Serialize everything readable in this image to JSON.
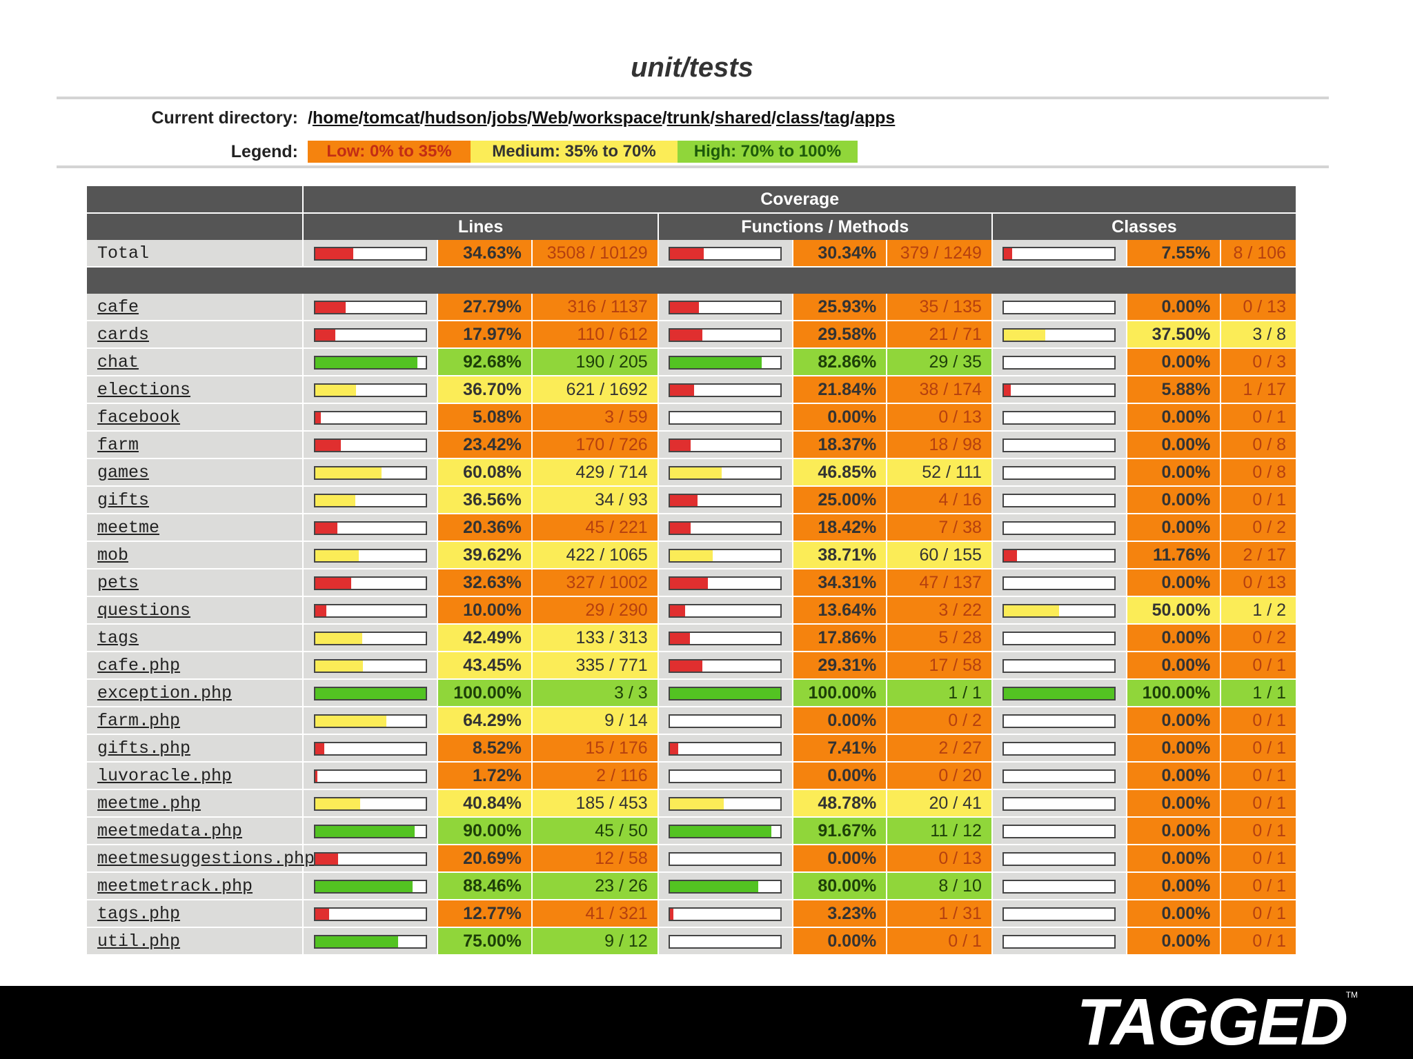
{
  "title": "unit/tests",
  "current_directory": {
    "label": "Current directory:",
    "path": "/home/tomcat/hudson/jobs/Web/workspace/trunk/shared/class/tag/apps"
  },
  "legend": {
    "label": "Legend:",
    "low": "Low: 0% to 35%",
    "medium": "Medium: 35% to 70%",
    "high": "High: 70% to 100%"
  },
  "colors": {
    "low": "#f5830e",
    "medium": "#fbec57",
    "high": "#90d63a",
    "bar_low": "#e02f2f",
    "bar_medium": "#fbec57",
    "bar_high": "#53c322"
  },
  "table": {
    "coverage_header": "Coverage",
    "columns": [
      "Lines",
      "Functions / Methods",
      "Classes"
    ],
    "total": {
      "name": "Total",
      "lines": {
        "pct": "34.63%",
        "ratio": "3508 / 10129",
        "value": 34.63
      },
      "functions": {
        "pct": "30.34%",
        "ratio": "379 / 1249",
        "value": 30.34
      },
      "classes": {
        "pct": "7.55%",
        "ratio": "8 / 106",
        "value": 7.55
      }
    },
    "rows": [
      {
        "name": "cafe",
        "lines": {
          "pct": "27.79%",
          "ratio": "316 / 1137",
          "value": 27.79
        },
        "functions": {
          "pct": "25.93%",
          "ratio": "35 / 135",
          "value": 25.93
        },
        "classes": {
          "pct": "0.00%",
          "ratio": "0 / 13",
          "value": 0
        }
      },
      {
        "name": "cards",
        "lines": {
          "pct": "17.97%",
          "ratio": "110 / 612",
          "value": 17.97
        },
        "functions": {
          "pct": "29.58%",
          "ratio": "21 / 71",
          "value": 29.58
        },
        "classes": {
          "pct": "37.50%",
          "ratio": "3 / 8",
          "value": 37.5
        }
      },
      {
        "name": "chat",
        "lines": {
          "pct": "92.68%",
          "ratio": "190 / 205",
          "value": 92.68
        },
        "functions": {
          "pct": "82.86%",
          "ratio": "29 / 35",
          "value": 82.86
        },
        "classes": {
          "pct": "0.00%",
          "ratio": "0 / 3",
          "value": 0
        }
      },
      {
        "name": "elections",
        "lines": {
          "pct": "36.70%",
          "ratio": "621 / 1692",
          "value": 36.7
        },
        "functions": {
          "pct": "21.84%",
          "ratio": "38 / 174",
          "value": 21.84
        },
        "classes": {
          "pct": "5.88%",
          "ratio": "1 / 17",
          "value": 5.88
        }
      },
      {
        "name": "facebook",
        "lines": {
          "pct": "5.08%",
          "ratio": "3 / 59",
          "value": 5.08
        },
        "functions": {
          "pct": "0.00%",
          "ratio": "0 / 13",
          "value": 0
        },
        "classes": {
          "pct": "0.00%",
          "ratio": "0 / 1",
          "value": 0
        }
      },
      {
        "name": "farm",
        "lines": {
          "pct": "23.42%",
          "ratio": "170 / 726",
          "value": 23.42
        },
        "functions": {
          "pct": "18.37%",
          "ratio": "18 / 98",
          "value": 18.37
        },
        "classes": {
          "pct": "0.00%",
          "ratio": "0 / 8",
          "value": 0
        }
      },
      {
        "name": "games",
        "lines": {
          "pct": "60.08%",
          "ratio": "429 / 714",
          "value": 60.08
        },
        "functions": {
          "pct": "46.85%",
          "ratio": "52 / 111",
          "value": 46.85
        },
        "classes": {
          "pct": "0.00%",
          "ratio": "0 / 8",
          "value": 0
        }
      },
      {
        "name": "gifts",
        "lines": {
          "pct": "36.56%",
          "ratio": "34 / 93",
          "value": 36.56
        },
        "functions": {
          "pct": "25.00%",
          "ratio": "4 / 16",
          "value": 25
        },
        "classes": {
          "pct": "0.00%",
          "ratio": "0 / 1",
          "value": 0
        }
      },
      {
        "name": "meetme",
        "lines": {
          "pct": "20.36%",
          "ratio": "45 / 221",
          "value": 20.36
        },
        "functions": {
          "pct": "18.42%",
          "ratio": "7 / 38",
          "value": 18.42
        },
        "classes": {
          "pct": "0.00%",
          "ratio": "0 / 2",
          "value": 0
        }
      },
      {
        "name": "mob",
        "lines": {
          "pct": "39.62%",
          "ratio": "422 / 1065",
          "value": 39.62
        },
        "functions": {
          "pct": "38.71%",
          "ratio": "60 / 155",
          "value": 38.71
        },
        "classes": {
          "pct": "11.76%",
          "ratio": "2 / 17",
          "value": 11.76
        }
      },
      {
        "name": "pets",
        "lines": {
          "pct": "32.63%",
          "ratio": "327 / 1002",
          "value": 32.63
        },
        "functions": {
          "pct": "34.31%",
          "ratio": "47 / 137",
          "value": 34.31
        },
        "classes": {
          "pct": "0.00%",
          "ratio": "0 / 13",
          "value": 0
        }
      },
      {
        "name": "questions",
        "lines": {
          "pct": "10.00%",
          "ratio": "29 / 290",
          "value": 10
        },
        "functions": {
          "pct": "13.64%",
          "ratio": "3 / 22",
          "value": 13.64
        },
        "classes": {
          "pct": "50.00%",
          "ratio": "1 / 2",
          "value": 50
        }
      },
      {
        "name": "tags",
        "lines": {
          "pct": "42.49%",
          "ratio": "133 / 313",
          "value": 42.49
        },
        "functions": {
          "pct": "17.86%",
          "ratio": "5 / 28",
          "value": 17.86
        },
        "classes": {
          "pct": "0.00%",
          "ratio": "0 / 2",
          "value": 0
        }
      },
      {
        "name": "cafe.php",
        "lines": {
          "pct": "43.45%",
          "ratio": "335 / 771",
          "value": 43.45
        },
        "functions": {
          "pct": "29.31%",
          "ratio": "17 / 58",
          "value": 29.31
        },
        "classes": {
          "pct": "0.00%",
          "ratio": "0 / 1",
          "value": 0
        }
      },
      {
        "name": "exception.php",
        "lines": {
          "pct": "100.00%",
          "ratio": "3 / 3",
          "value": 100
        },
        "functions": {
          "pct": "100.00%",
          "ratio": "1 / 1",
          "value": 100
        },
        "classes": {
          "pct": "100.00%",
          "ratio": "1 / 1",
          "value": 100
        }
      },
      {
        "name": "farm.php",
        "lines": {
          "pct": "64.29%",
          "ratio": "9 / 14",
          "value": 64.29
        },
        "functions": {
          "pct": "0.00%",
          "ratio": "0 / 2",
          "value": 0
        },
        "classes": {
          "pct": "0.00%",
          "ratio": "0 / 1",
          "value": 0
        }
      },
      {
        "name": "gifts.php",
        "lines": {
          "pct": "8.52%",
          "ratio": "15 / 176",
          "value": 8.52
        },
        "functions": {
          "pct": "7.41%",
          "ratio": "2 / 27",
          "value": 7.41
        },
        "classes": {
          "pct": "0.00%",
          "ratio": "0 / 1",
          "value": 0
        }
      },
      {
        "name": "luvoracle.php",
        "lines": {
          "pct": "1.72%",
          "ratio": "2 / 116",
          "value": 1.72
        },
        "functions": {
          "pct": "0.00%",
          "ratio": "0 / 20",
          "value": 0
        },
        "classes": {
          "pct": "0.00%",
          "ratio": "0 / 1",
          "value": 0
        }
      },
      {
        "name": "meetme.php",
        "lines": {
          "pct": "40.84%",
          "ratio": "185 / 453",
          "value": 40.84
        },
        "functions": {
          "pct": "48.78%",
          "ratio": "20 / 41",
          "value": 48.78
        },
        "classes": {
          "pct": "0.00%",
          "ratio": "0 / 1",
          "value": 0
        }
      },
      {
        "name": "meetmedata.php",
        "lines": {
          "pct": "90.00%",
          "ratio": "45 / 50",
          "value": 90
        },
        "functions": {
          "pct": "91.67%",
          "ratio": "11 / 12",
          "value": 91.67
        },
        "classes": {
          "pct": "0.00%",
          "ratio": "0 / 1",
          "value": 0
        }
      },
      {
        "name": "meetmesuggestions.php",
        "lines": {
          "pct": "20.69%",
          "ratio": "12 / 58",
          "value": 20.69
        },
        "functions": {
          "pct": "0.00%",
          "ratio": "0 / 13",
          "value": 0
        },
        "classes": {
          "pct": "0.00%",
          "ratio": "0 / 1",
          "value": 0
        }
      },
      {
        "name": "meetmetrack.php",
        "lines": {
          "pct": "88.46%",
          "ratio": "23 / 26",
          "value": 88.46
        },
        "functions": {
          "pct": "80.00%",
          "ratio": "8 / 10",
          "value": 80
        },
        "classes": {
          "pct": "0.00%",
          "ratio": "0 / 1",
          "value": 0
        }
      },
      {
        "name": "tags.php",
        "lines": {
          "pct": "12.77%",
          "ratio": "41 / 321",
          "value": 12.77
        },
        "functions": {
          "pct": "3.23%",
          "ratio": "1 / 31",
          "value": 3.23
        },
        "classes": {
          "pct": "0.00%",
          "ratio": "0 / 1",
          "value": 0
        }
      },
      {
        "name": "util.php",
        "lines": {
          "pct": "75.00%",
          "ratio": "9 / 12",
          "value": 75
        },
        "functions": {
          "pct": "0.00%",
          "ratio": "0 / 1",
          "value": 0
        },
        "classes": {
          "pct": "0.00%",
          "ratio": "0 / 1",
          "value": 0
        }
      }
    ]
  },
  "footer": {
    "logo": "TAGGED",
    "trademark": "TM"
  }
}
